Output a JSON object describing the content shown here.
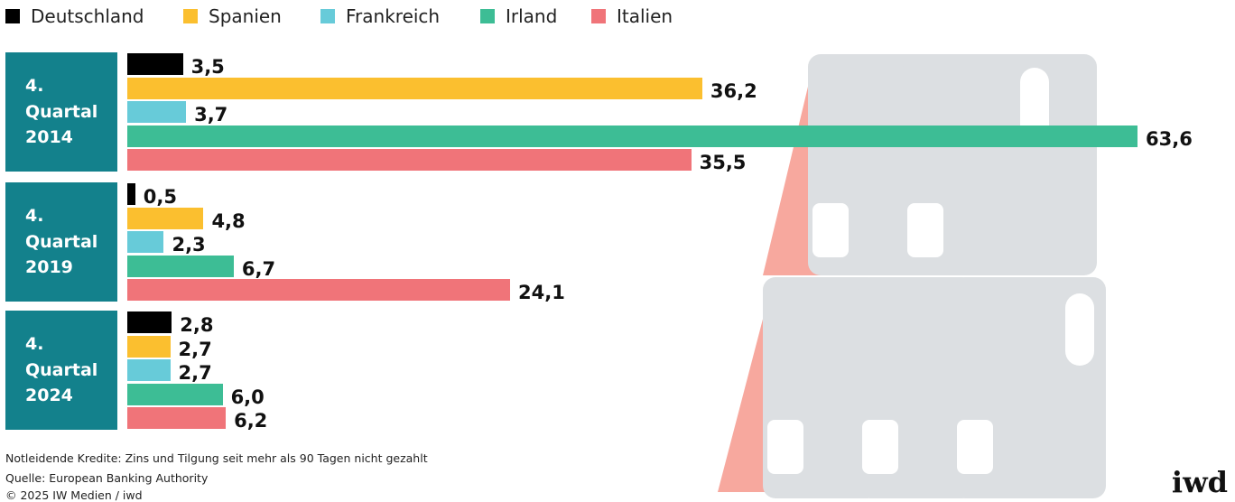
{
  "chart_data": {
    "type": "bar",
    "orientation": "horizontal",
    "categories": [
      "4. Quartal 2014",
      "4. Quartal 2019",
      "4. Quartal 2024"
    ],
    "series": [
      {
        "name": "Deutschland",
        "color": "#000000",
        "values": [
          3.5,
          0.5,
          2.8
        ],
        "value_labels": [
          "3,5",
          "0,5",
          "2,8"
        ]
      },
      {
        "name": "Spanien",
        "color": "#fbbf2f",
        "values": [
          36.2,
          4.8,
          2.7
        ],
        "value_labels": [
          "36,2",
          "4,8",
          "2,7"
        ]
      },
      {
        "name": "Frankreich",
        "color": "#67cbd9",
        "values": [
          3.7,
          2.3,
          2.7
        ],
        "value_labels": [
          "3,7",
          "2,3",
          "2,7"
        ]
      },
      {
        "name": "Irland",
        "color": "#3dbd95",
        "values": [
          63.6,
          6.7,
          6.0
        ],
        "value_labels": [
          "63,6",
          "6,7",
          "6,0"
        ]
      },
      {
        "name": "Italien",
        "color": "#f07479",
        "values": [
          35.5,
          24.1,
          6.2
        ],
        "value_labels": [
          "35,5",
          "24,1",
          "6,2"
        ]
      }
    ],
    "group_color": "#13818c",
    "note": "Notleidende Kredite: Zins und Tilgung seit mehr als 90 Tagen nicht gezahlt",
    "source": "Quelle: European Banking Authority",
    "copyright": "© 2025 IW Medien / iwd",
    "logo": "iwd"
  }
}
